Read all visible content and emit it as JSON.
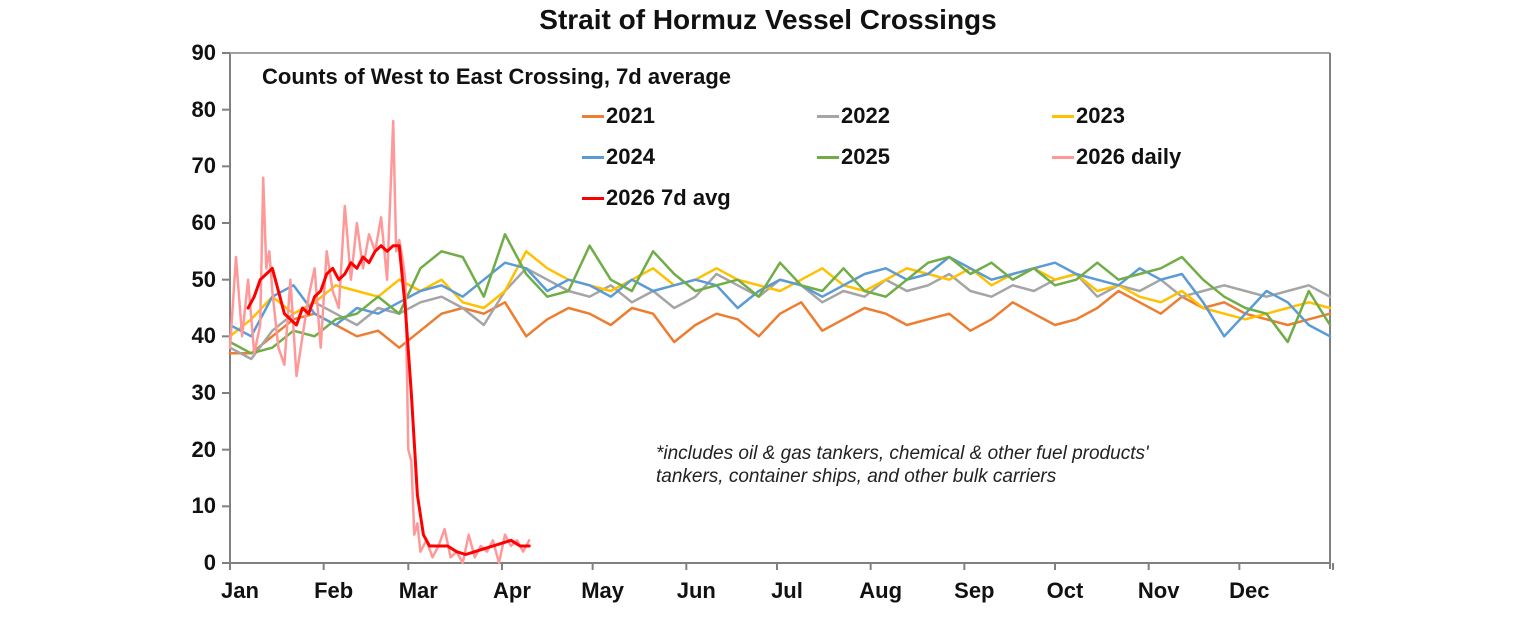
{
  "chart_data": {
    "type": "line",
    "title": "Strait of Hormuz Vessel Crossings",
    "subtitle": "Counts of West to East Crossing, 7d average",
    "xlabel": "",
    "ylabel": "",
    "ylim": [
      0,
      90
    ],
    "yticks": [
      0,
      10,
      20,
      30,
      40,
      50,
      60,
      70,
      80,
      90
    ],
    "xticks": [
      "Jan",
      "Feb",
      "Mar",
      "Apr",
      "May",
      "Jun",
      "Jul",
      "Aug",
      "Sep",
      "Oct",
      "Nov",
      "Dec"
    ],
    "grid": false,
    "legend_position": "upper-right inside plot",
    "footnote": "*includes oil & gas tankers, chemical & other fuel products' tankers, container ships, and other bulk carriers",
    "x_unit": "day of year (approx., weekly sampling for 2021-2025)",
    "series": [
      {
        "name": "2021",
        "color": "#ED7D31",
        "x": [
          1,
          8,
          15,
          22,
          29,
          36,
          43,
          50,
          57,
          64,
          71,
          78,
          85,
          92,
          99,
          106,
          113,
          120,
          127,
          134,
          141,
          148,
          155,
          162,
          169,
          176,
          183,
          190,
          197,
          204,
          211,
          218,
          225,
          232,
          239,
          246,
          253,
          260,
          267,
          274,
          281,
          288,
          295,
          302,
          309,
          316,
          323,
          330,
          337,
          344,
          351,
          358,
          365
        ],
        "values": [
          37,
          37,
          40,
          43,
          44,
          42,
          40,
          41,
          38,
          41,
          44,
          45,
          44,
          46,
          40,
          43,
          45,
          44,
          42,
          45,
          44,
          39,
          42,
          44,
          43,
          40,
          44,
          46,
          41,
          43,
          45,
          44,
          42,
          43,
          44,
          41,
          43,
          46,
          44,
          42,
          43,
          45,
          48,
          46,
          44,
          47,
          45,
          46,
          44,
          43,
          42,
          43,
          44
        ]
      },
      {
        "name": "2022",
        "color": "#A5A5A5",
        "x": [
          1,
          8,
          15,
          22,
          29,
          36,
          43,
          50,
          57,
          64,
          71,
          78,
          85,
          92,
          99,
          106,
          113,
          120,
          127,
          134,
          141,
          148,
          155,
          162,
          169,
          176,
          183,
          190,
          197,
          204,
          211,
          218,
          225,
          232,
          239,
          246,
          253,
          260,
          267,
          274,
          281,
          288,
          295,
          302,
          309,
          316,
          323,
          330,
          337,
          344,
          351,
          358,
          365
        ],
        "values": [
          38,
          36,
          41,
          44,
          46,
          44,
          42,
          45,
          44,
          46,
          47,
          45,
          42,
          48,
          52,
          50,
          48,
          47,
          49,
          46,
          48,
          45,
          47,
          51,
          49,
          47,
          50,
          49,
          46,
          48,
          47,
          50,
          48,
          49,
          51,
          48,
          47,
          49,
          48,
          50,
          51,
          47,
          49,
          48,
          50,
          47,
          48,
          49,
          48,
          47,
          48,
          49,
          47
        ]
      },
      {
        "name": "2023",
        "color": "#FFC000",
        "x": [
          1,
          8,
          15,
          22,
          29,
          36,
          43,
          50,
          57,
          64,
          71,
          78,
          85,
          92,
          99,
          106,
          113,
          120,
          127,
          134,
          141,
          148,
          155,
          162,
          169,
          176,
          183,
          190,
          197,
          204,
          211,
          218,
          225,
          232,
          239,
          246,
          253,
          260,
          267,
          274,
          281,
          288,
          295,
          302,
          309,
          316,
          323,
          330,
          337,
          344,
          351,
          358,
          365
        ],
        "values": [
          40,
          43,
          47,
          44,
          46,
          49,
          48,
          47,
          50,
          48,
          50,
          46,
          45,
          48,
          55,
          52,
          50,
          49,
          48,
          50,
          52,
          49,
          50,
          52,
          50,
          49,
          48,
          50,
          52,
          49,
          48,
          50,
          52,
          51,
          50,
          52,
          49,
          51,
          52,
          50,
          51,
          48,
          49,
          47,
          46,
          48,
          45,
          44,
          43,
          44,
          45,
          46,
          45
        ]
      },
      {
        "name": "2024",
        "color": "#5B9BD5",
        "x": [
          1,
          8,
          15,
          22,
          29,
          36,
          43,
          50,
          57,
          64,
          71,
          78,
          85,
          92,
          99,
          106,
          113,
          120,
          127,
          134,
          141,
          148,
          155,
          162,
          169,
          176,
          183,
          190,
          197,
          204,
          211,
          218,
          225,
          232,
          239,
          246,
          253,
          260,
          267,
          274,
          281,
          288,
          295,
          302,
          309,
          316,
          323,
          330,
          337,
          344,
          351,
          358,
          365
        ],
        "values": [
          42,
          40,
          47,
          49,
          44,
          42,
          45,
          44,
          46,
          48,
          49,
          47,
          50,
          53,
          52,
          48,
          50,
          49,
          47,
          50,
          48,
          49,
          50,
          49,
          45,
          48,
          50,
          49,
          47,
          49,
          51,
          52,
          50,
          51,
          54,
          52,
          50,
          51,
          52,
          53,
          51,
          50,
          49,
          52,
          50,
          51,
          46,
          40,
          44,
          48,
          46,
          42,
          40
        ]
      },
      {
        "name": "2025",
        "color": "#70AD47",
        "x": [
          1,
          8,
          15,
          22,
          29,
          36,
          43,
          50,
          57,
          64,
          71,
          78,
          85,
          92,
          99,
          106,
          113,
          120,
          127,
          134,
          141,
          148,
          155,
          162,
          169,
          176,
          183,
          190,
          197,
          204,
          211,
          218,
          225,
          232,
          239,
          246,
          253,
          260,
          267,
          274,
          281,
          288,
          295,
          302,
          309,
          316,
          323,
          330,
          337,
          344,
          351,
          358,
          365
        ],
        "values": [
          39,
          37,
          38,
          41,
          40,
          43,
          44,
          47,
          44,
          52,
          55,
          54,
          47,
          58,
          51,
          47,
          48,
          56,
          50,
          48,
          55,
          51,
          48,
          49,
          50,
          47,
          53,
          49,
          48,
          52,
          48,
          47,
          50,
          53,
          54,
          51,
          53,
          50,
          52,
          49,
          50,
          53,
          50,
          51,
          52,
          54,
          50,
          47,
          45,
          44,
          39,
          48,
          42
        ]
      },
      {
        "name": "2026 daily",
        "color": "#FF9999",
        "x": [
          1,
          3,
          5,
          7,
          9,
          11,
          12,
          13,
          14,
          15,
          17,
          19,
          21,
          23,
          25,
          27,
          29,
          31,
          33,
          35,
          37,
          39,
          41,
          43,
          45,
          47,
          49,
          51,
          53,
          55,
          56,
          57,
          58,
          59,
          60,
          61,
          62,
          63,
          64,
          66,
          68,
          70,
          72,
          74,
          76,
          78,
          80,
          82,
          84,
          86,
          88,
          90,
          92,
          94,
          96,
          98,
          100
        ],
        "values": [
          38,
          54,
          40,
          50,
          37,
          42,
          68,
          52,
          55,
          48,
          38,
          35,
          50,
          33,
          40,
          47,
          52,
          38,
          55,
          48,
          45,
          63,
          50,
          60,
          52,
          58,
          55,
          61,
          50,
          78,
          55,
          57,
          54,
          50,
          20,
          18,
          5,
          7,
          2,
          4,
          1,
          3,
          6,
          1,
          2,
          0,
          5,
          1,
          3,
          2,
          4,
          0,
          5,
          3,
          4,
          2,
          4
        ]
      },
      {
        "name": "2026 7d avg",
        "color": "#FF0000",
        "x": [
          7,
          9,
          11,
          13,
          15,
          17,
          19,
          21,
          23,
          25,
          27,
          29,
          31,
          33,
          35,
          37,
          39,
          41,
          43,
          45,
          47,
          49,
          51,
          53,
          55,
          57,
          59,
          61,
          63,
          65,
          67,
          70,
          73,
          76,
          79,
          82,
          85,
          88,
          91,
          94,
          97,
          100
        ],
        "values": [
          45,
          47,
          50,
          51,
          52,
          48,
          44,
          43,
          42,
          45,
          44,
          47,
          48,
          51,
          52,
          50,
          51,
          53,
          52,
          54,
          53,
          55,
          56,
          55,
          56,
          56,
          45,
          30,
          12,
          5,
          3,
          3,
          3,
          2,
          1.5,
          2,
          2.5,
          3,
          3.5,
          4,
          3,
          3
        ]
      }
    ]
  },
  "title": "Strait of Hormuz Vessel Crossings",
  "subtitle": "Counts of West to East Crossing, 7d average",
  "legend": [
    {
      "label": "2021",
      "color": "#ED7D31"
    },
    {
      "label": "2022",
      "color": "#A5A5A5"
    },
    {
      "label": "2023",
      "color": "#FFC000"
    },
    {
      "label": "2024",
      "color": "#5B9BD5"
    },
    {
      "label": "2025",
      "color": "#70AD47"
    },
    {
      "label": "2026 daily",
      "color": "#FF9999"
    },
    {
      "label": "2026 7d avg",
      "color": "#FF0000"
    }
  ],
  "y_labels": [
    "0",
    "10",
    "20",
    "30",
    "40",
    "50",
    "60",
    "70",
    "80",
    "90"
  ],
  "x_labels": [
    "Jan",
    "Feb",
    "Mar",
    "Apr",
    "May",
    "Jun",
    "Jul",
    "Aug",
    "Sep",
    "Oct",
    "Nov",
    "Dec"
  ],
  "footnote": "*includes oil & gas tankers, chemical & other fuel products' tankers, container ships, and other bulk carriers"
}
